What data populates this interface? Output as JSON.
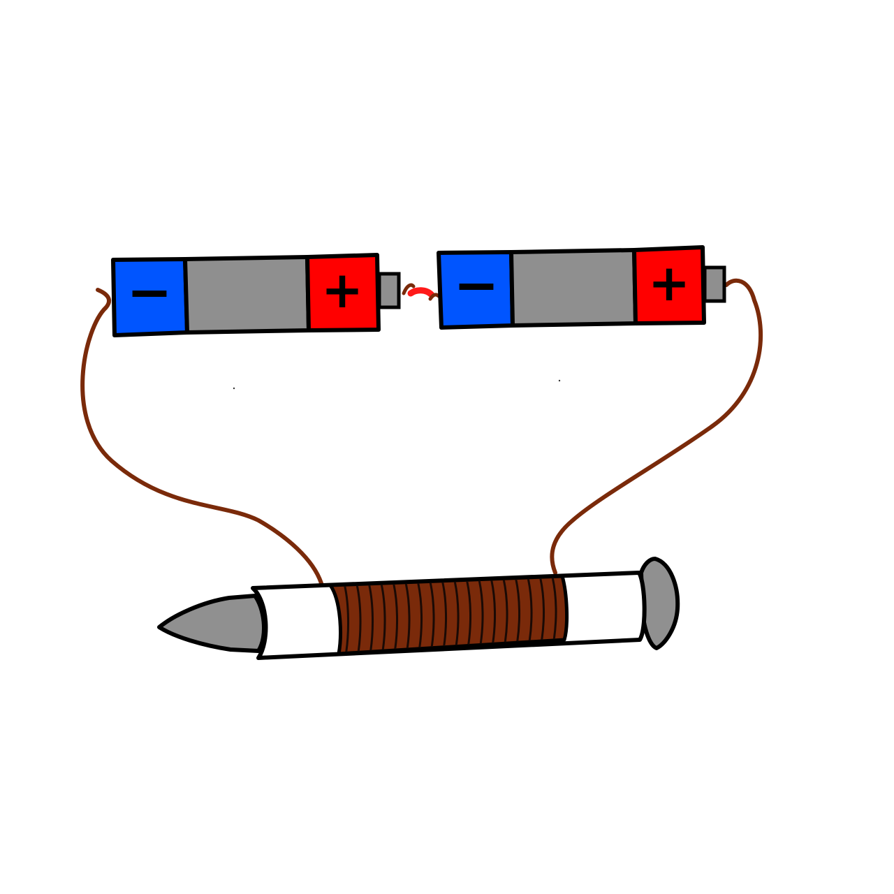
{
  "diagram": {
    "subject": "electromagnet-circuit",
    "colors": {
      "background": "#ffffff",
      "negative_terminal": "#0055ff",
      "positive_terminal": "#ff0000",
      "battery_body": "#8f8f8f",
      "terminal_cap": "#8f8f8f",
      "wire": "#7a2a0a",
      "connector": "#ff1a1a",
      "tube": "#ffffff",
      "nail_metal": "#909090",
      "coil": "#7a2a0a",
      "coil_stripe": "#1a0a05",
      "outline": "#000000"
    },
    "batteries": [
      {
        "negative_label": "−",
        "positive_label": "+"
      },
      {
        "negative_label": "−",
        "positive_label": "+"
      }
    ],
    "coil_turns": 18
  }
}
